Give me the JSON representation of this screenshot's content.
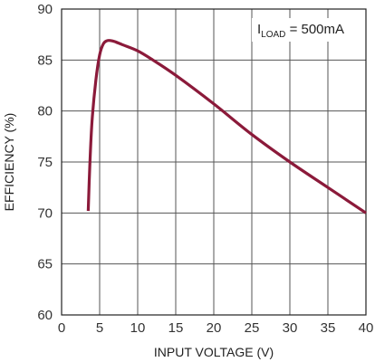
{
  "chart_data": {
    "type": "line",
    "title": "",
    "xlabel": "INPUT VOLTAGE (V)",
    "ylabel": "EFFICIENCY (%)",
    "xlim": [
      0,
      40
    ],
    "ylim": [
      60,
      90
    ],
    "xticks": [
      0,
      5,
      10,
      15,
      20,
      25,
      30,
      35,
      40
    ],
    "yticks": [
      60,
      65,
      70,
      75,
      80,
      85,
      90
    ],
    "grid": true,
    "line_color": "#8b1a3a",
    "annotation": {
      "prefix": "I",
      "subscript": "LOAD",
      "suffix": " = 500mA",
      "placement": "top-right"
    },
    "series": [
      {
        "x": [
          3.5,
          3.7,
          4.0,
          4.5,
          5.0,
          5.5,
          6.0,
          6.5,
          7.0,
          8.0,
          10.0,
          12.0,
          15.0,
          20.0,
          25.0,
          30.0,
          35.0,
          40.0
        ],
        "y": [
          70.2,
          74.5,
          79.0,
          83.0,
          85.5,
          86.6,
          86.9,
          86.9,
          86.8,
          86.5,
          85.9,
          85.0,
          83.5,
          80.7,
          77.7,
          75.0,
          72.5,
          70.0
        ]
      }
    ]
  }
}
